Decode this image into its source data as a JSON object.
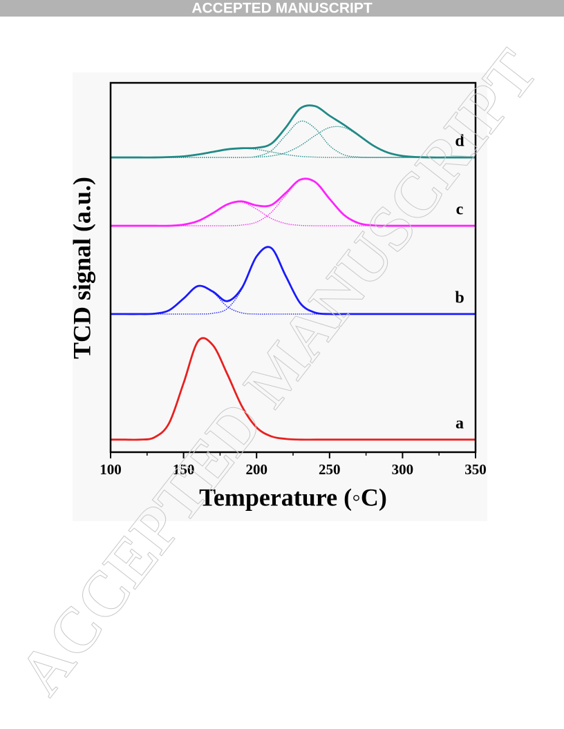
{
  "header": {
    "banner": "ACCEPTED MANUSCRIPT"
  },
  "watermark": "ACCEPTED MANUSCRIPT",
  "chart_data": {
    "type": "line",
    "xlabel": "Temperature (◦C)",
    "ylabel": "TCD signal (a.u.)",
    "xlim": [
      100,
      350
    ],
    "xticks": [
      100,
      150,
      200,
      250,
      300,
      350
    ],
    "xminorticks": [
      125,
      175,
      225,
      275,
      325
    ],
    "ylim": [
      0,
      100
    ],
    "x": [
      100,
      110,
      120,
      130,
      140,
      150,
      160,
      170,
      180,
      190,
      200,
      210,
      220,
      230,
      240,
      250,
      260,
      270,
      280,
      290,
      300,
      310,
      320,
      330,
      340,
      350
    ],
    "series": [
      {
        "color": "#1a1aff",
        "dotted": true,
        "values": [
          37.4,
          37.4,
          37.4,
          37.5,
          38.4,
          41.6,
          45.0,
          43.3,
          39.4,
          37.7,
          37.4,
          37.4,
          37.4,
          37.4,
          37.4,
          37.4,
          37.4,
          37.4,
          37.4,
          37.4,
          37.4,
          37.4,
          37.4,
          37.4,
          37.4,
          37.4
        ]
      },
      {
        "color": "#1a1aff",
        "dotted": true,
        "values": [
          37.4,
          37.4,
          37.4,
          37.4,
          37.4,
          37.4,
          37.4,
          37.6,
          38.9,
          44.2,
          53.0,
          55.3,
          47.7,
          40.3,
          37.8,
          37.4,
          37.4,
          37.4,
          37.4,
          37.4,
          37.4,
          37.4,
          37.4,
          37.4,
          37.4,
          37.4
        ]
      },
      {
        "color": "#ff22ff",
        "dotted": true,
        "values": [
          61.3,
          61.3,
          61.3,
          61.3,
          61.3,
          61.6,
          62.6,
          64.7,
          67.1,
          67.7,
          65.8,
          63.3,
          61.9,
          61.4,
          61.3,
          61.3,
          61.3,
          61.3,
          61.3,
          61.3,
          61.3,
          61.3,
          61.3,
          61.3,
          61.3,
          61.3
        ]
      },
      {
        "color": "#ff22ff",
        "dotted": true,
        "values": [
          61.3,
          61.3,
          61.3,
          61.3,
          61.3,
          61.3,
          61.3,
          61.3,
          61.3,
          61.5,
          62.3,
          64.9,
          69.6,
          73.7,
          73.2,
          68.6,
          64.2,
          62.0,
          61.4,
          61.3,
          61.3,
          61.3,
          61.3,
          61.3,
          61.3,
          61.3
        ]
      },
      {
        "color": "#1f8a86",
        "dotted": true,
        "values": [
          79.8,
          79.8,
          79.8,
          79.8,
          79.9,
          80.1,
          80.6,
          81.3,
          82.0,
          82.3,
          82.0,
          81.3,
          80.6,
          80.1,
          79.9,
          79.8,
          79.8,
          79.8,
          79.8,
          79.8,
          79.8,
          79.8,
          79.8,
          79.8,
          79.8,
          79.8
        ]
      },
      {
        "color": "#1f8a86",
        "dotted": true,
        "values": [
          79.8,
          79.8,
          79.8,
          79.8,
          79.8,
          79.8,
          79.8,
          79.8,
          79.8,
          79.8,
          80.1,
          81.6,
          85.8,
          89.6,
          87.7,
          83.0,
          80.5,
          79.9,
          79.8,
          79.8,
          79.8,
          79.8,
          79.8,
          79.8,
          79.8,
          79.8
        ]
      },
      {
        "color": "#1f8a86",
        "dotted": true,
        "values": [
          79.8,
          79.8,
          79.8,
          79.8,
          79.8,
          79.8,
          79.8,
          79.8,
          79.8,
          79.8,
          79.9,
          80.2,
          81.1,
          83.0,
          85.7,
          87.9,
          87.9,
          85.7,
          83.0,
          81.1,
          80.2,
          79.9,
          79.8,
          79.8,
          79.8,
          79.8
        ]
      },
      {
        "name": "a",
        "color": "#e8201f",
        "values": [
          3.4,
          3.4,
          3.4,
          4.0,
          7.8,
          18.7,
          30.1,
          29.0,
          21.1,
          12.4,
          6.7,
          4.3,
          3.6,
          3.4,
          3.4,
          3.4,
          3.4,
          3.4,
          3.4,
          3.4,
          3.4,
          3.4,
          3.4,
          3.4,
          3.4,
          3.4
        ]
      },
      {
        "name": "b",
        "color": "#1a1aff",
        "values": [
          37.4,
          37.4,
          37.4,
          37.5,
          38.4,
          41.6,
          45.0,
          43.5,
          40.9,
          44.5,
          53.0,
          55.3,
          47.7,
          40.3,
          37.8,
          37.4,
          37.4,
          37.4,
          37.4,
          37.4,
          37.4,
          37.4,
          37.4,
          37.4,
          37.4,
          37.4
        ]
      },
      {
        "name": "c",
        "color": "#ff22ff",
        "values": [
          61.3,
          61.3,
          61.3,
          61.3,
          61.3,
          61.6,
          62.6,
          64.7,
          67.1,
          67.9,
          66.8,
          66.9,
          70.2,
          73.8,
          73.2,
          68.6,
          64.2,
          62.0,
          61.4,
          61.3,
          61.3,
          61.3,
          61.3,
          61.3,
          61.3,
          61.3
        ]
      },
      {
        "name": "d",
        "color": "#1f8a86",
        "values": [
          79.8,
          79.8,
          79.8,
          79.8,
          79.9,
          80.1,
          80.6,
          81.3,
          82.0,
          82.3,
          82.4,
          83.5,
          87.9,
          93.1,
          93.7,
          91.1,
          88.6,
          85.8,
          83.0,
          81.1,
          80.2,
          79.9,
          79.8,
          79.8,
          79.8,
          79.8
        ]
      }
    ]
  }
}
